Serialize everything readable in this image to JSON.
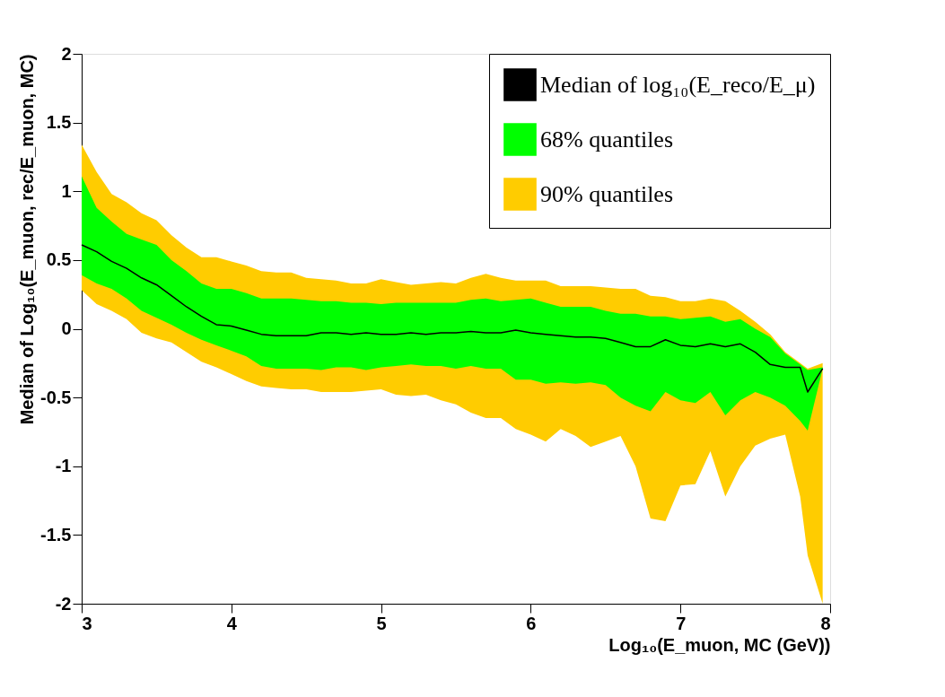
{
  "chart_data": {
    "type": "line",
    "xlabel": "Log₁₀(E_muon, MC (GeV))",
    "ylabel": "Median of Log₁₀(E_muon, rec/E_muon, MC)",
    "x": [
      3.0,
      3.1,
      3.2,
      3.3,
      3.4,
      3.5,
      3.6,
      3.7,
      3.8,
      3.9,
      4.0,
      4.1,
      4.2,
      4.3,
      4.4,
      4.5,
      4.6,
      4.7,
      4.8,
      4.9,
      5.0,
      5.1,
      5.2,
      5.3,
      5.4,
      5.5,
      5.6,
      5.7,
      5.8,
      5.9,
      6.0,
      6.1,
      6.2,
      6.3,
      6.4,
      6.5,
      6.6,
      6.7,
      6.8,
      6.9,
      7.0,
      7.1,
      7.2,
      7.3,
      7.4,
      7.5,
      7.6,
      7.7,
      7.8,
      7.85,
      7.95
    ],
    "series": [
      {
        "name": "Median of log₁₀(E_reco/E_μ)",
        "color": "#000000",
        "values": [
          0.61,
          0.56,
          0.49,
          0.44,
          0.37,
          0.32,
          0.24,
          0.16,
          0.09,
          0.03,
          0.02,
          -0.01,
          -0.04,
          -0.05,
          -0.05,
          -0.05,
          -0.03,
          -0.03,
          -0.04,
          -0.03,
          -0.04,
          -0.04,
          -0.03,
          -0.04,
          -0.03,
          -0.03,
          -0.02,
          -0.03,
          -0.03,
          -0.01,
          -0.03,
          -0.04,
          -0.05,
          -0.06,
          -0.06,
          -0.07,
          -0.1,
          -0.13,
          -0.13,
          -0.08,
          -0.12,
          -0.13,
          -0.11,
          -0.13,
          -0.11,
          -0.17,
          -0.26,
          -0.28,
          -0.28,
          -0.46,
          -0.29
        ]
      },
      {
        "name": "68% quantiles",
        "color": "#00ff00",
        "values": [
          null,
          null,
          null,
          null,
          null,
          null,
          null,
          null,
          null,
          null,
          null,
          null,
          null,
          null,
          null,
          null,
          null,
          null,
          null,
          null,
          null,
          null,
          null,
          null,
          null,
          null,
          null,
          null,
          null,
          null,
          null,
          null,
          null,
          null,
          null,
          null,
          null,
          null,
          null,
          null,
          null,
          null,
          null,
          null,
          null,
          null,
          null,
          null,
          null,
          null,
          null
        ],
        "lower": [
          0.39,
          0.33,
          0.29,
          0.22,
          0.13,
          0.08,
          0.03,
          -0.03,
          -0.08,
          -0.12,
          -0.16,
          -0.2,
          -0.27,
          -0.29,
          -0.29,
          -0.29,
          -0.3,
          -0.28,
          -0.28,
          -0.3,
          -0.28,
          -0.27,
          -0.26,
          -0.27,
          -0.27,
          -0.29,
          -0.27,
          -0.29,
          -0.29,
          -0.37,
          -0.37,
          -0.4,
          -0.39,
          -0.4,
          -0.39,
          -0.41,
          -0.5,
          -0.56,
          -0.6,
          -0.46,
          -0.52,
          -0.54,
          -0.46,
          -0.63,
          -0.52,
          -0.46,
          -0.5,
          -0.56,
          -0.67,
          -0.74,
          -0.29
        ],
        "upper": [
          1.11,
          0.88,
          0.78,
          0.69,
          0.65,
          0.61,
          0.5,
          0.42,
          0.33,
          0.29,
          0.29,
          0.26,
          0.22,
          0.22,
          0.22,
          0.21,
          0.2,
          0.2,
          0.19,
          0.19,
          0.18,
          0.19,
          0.19,
          0.19,
          0.19,
          0.19,
          0.21,
          0.22,
          0.2,
          0.21,
          0.22,
          0.19,
          0.16,
          0.16,
          0.16,
          0.13,
          0.11,
          0.11,
          0.09,
          0.09,
          0.07,
          0.08,
          0.09,
          0.05,
          0.07,
          0.0,
          -0.06,
          -0.18,
          -0.26,
          -0.3,
          -0.28
        ]
      },
      {
        "name": "90% quantiles",
        "color": "#ffcc00",
        "values": [
          null,
          null,
          null,
          null,
          null,
          null,
          null,
          null,
          null,
          null,
          null,
          null,
          null,
          null,
          null,
          null,
          null,
          null,
          null,
          null,
          null,
          null,
          null,
          null,
          null,
          null,
          null,
          null,
          null,
          null,
          null,
          null,
          null,
          null,
          null,
          null,
          null,
          null,
          null,
          null,
          null,
          null,
          null,
          null,
          null,
          null,
          null,
          null,
          null,
          null,
          null
        ],
        "lower": [
          0.28,
          0.18,
          0.13,
          0.07,
          -0.03,
          -0.07,
          -0.1,
          -0.17,
          -0.24,
          -0.28,
          -0.33,
          -0.38,
          -0.42,
          -0.43,
          -0.44,
          -0.44,
          -0.46,
          -0.46,
          -0.46,
          -0.45,
          -0.44,
          -0.48,
          -0.49,
          -0.48,
          -0.52,
          -0.55,
          -0.61,
          -0.65,
          -0.65,
          -0.73,
          -0.77,
          -0.82,
          -0.73,
          -0.78,
          -0.86,
          -0.82,
          -0.78,
          -1.0,
          -1.38,
          -1.4,
          -1.14,
          -1.13,
          -0.89,
          -1.22,
          -1.0,
          -0.85,
          -0.8,
          -0.77,
          -1.22,
          -1.65,
          -2.0
        ],
        "upper": [
          1.34,
          1.14,
          0.98,
          0.92,
          0.84,
          0.79,
          0.68,
          0.59,
          0.52,
          0.52,
          0.49,
          0.46,
          0.42,
          0.41,
          0.41,
          0.37,
          0.36,
          0.35,
          0.33,
          0.33,
          0.36,
          0.34,
          0.32,
          0.33,
          0.34,
          0.33,
          0.37,
          0.4,
          0.37,
          0.35,
          0.35,
          0.35,
          0.31,
          0.31,
          0.31,
          0.3,
          0.29,
          0.29,
          0.24,
          0.23,
          0.2,
          0.2,
          0.22,
          0.2,
          0.13,
          0.05,
          -0.04,
          -0.17,
          -0.25,
          -0.29,
          -0.25
        ]
      }
    ],
    "xlim": [
      3,
      8
    ],
    "xticks": [
      3,
      4,
      5,
      6,
      7,
      8
    ],
    "ylim": [
      -2,
      2
    ],
    "yticks": [
      -2,
      -1.5,
      -1,
      -0.5,
      0,
      0.5,
      1,
      1.5,
      2
    ],
    "grid": false,
    "legend": "top right"
  }
}
